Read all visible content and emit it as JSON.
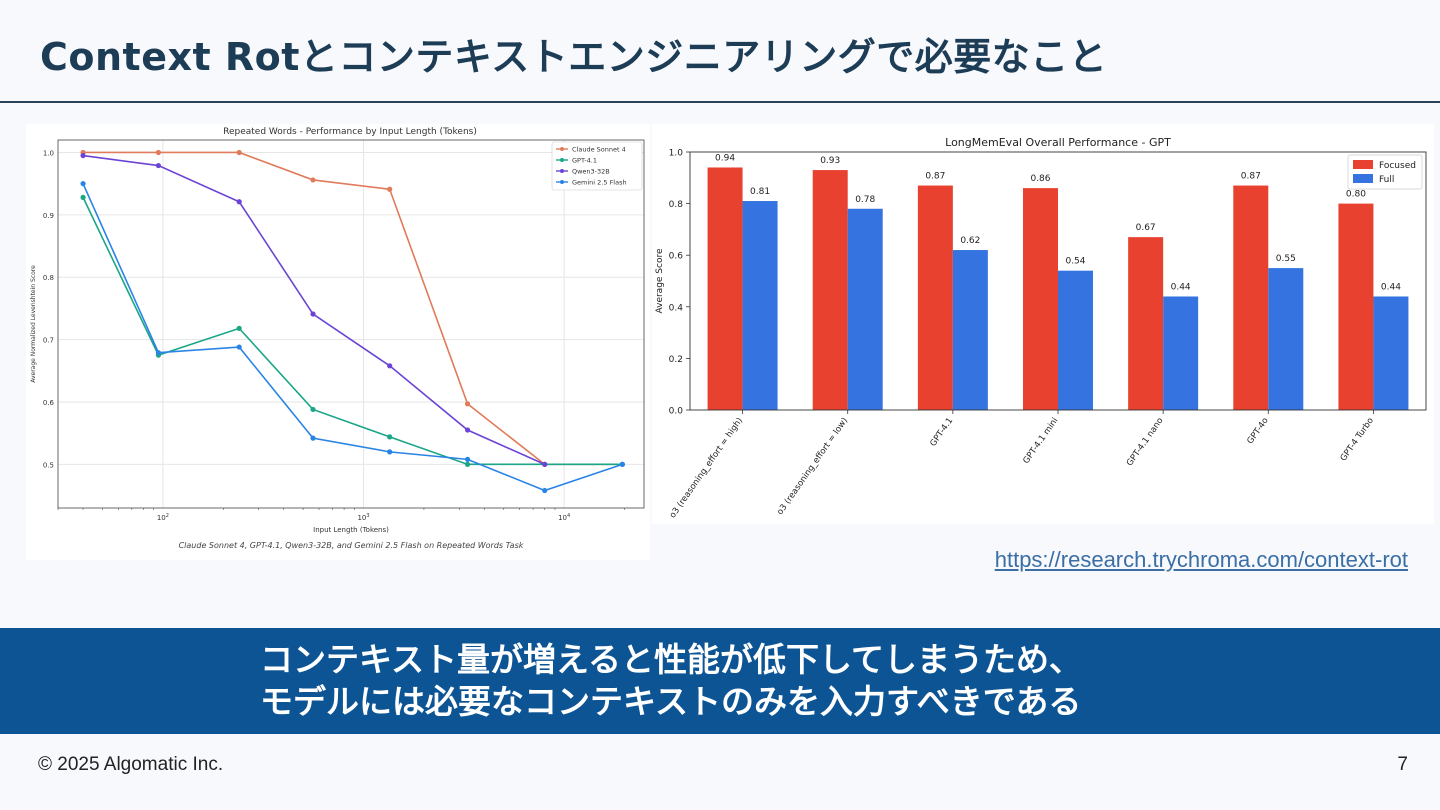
{
  "slide": {
    "title": "Context Rotとコンテキストエンジニアリングで必要なこと",
    "source_url": "https://research.trychroma.com/context-rot",
    "banner_line1": "コンテキスト量が増えると性能が低下してしまうため、",
    "banner_line2": "モデルには必要なコンテキストのみを入力すべきである",
    "copyright": "© 2025 Algomatic Inc.",
    "page_number": "7",
    "banner_color": "#0d5495"
  },
  "chart_data": [
    {
      "type": "line",
      "title": "Repeated Words - Performance by Input Length (Tokens)",
      "xlabel": "Input Length (Tokens)",
      "ylabel": "Average Normalized Levenshtein Score",
      "caption": "Claude Sonnet 4, GPT-4.1, Qwen3-32B, and Gemini 2.5 Flash on Repeated Words Task",
      "x_scale": "log",
      "xlim": [
        30,
        25000
      ],
      "ylim": [
        0.43,
        1.02
      ],
      "x_ticks": [
        {
          "value": 100,
          "base": "10",
          "exp": "2"
        },
        {
          "value": 1000,
          "base": "10",
          "exp": "3"
        },
        {
          "value": 10000,
          "base": "10",
          "exp": "4"
        }
      ],
      "y_ticks": [
        "0.5",
        "0.6",
        "0.7",
        "0.8",
        "0.9",
        "1.0"
      ],
      "grid": true,
      "legend_position": "top-right",
      "series": [
        {
          "name": "Claude Sonnet 4",
          "color": "#e07b5b",
          "x": [
            40,
            95,
            240,
            560,
            1350,
            3300,
            8000,
            19500
          ],
          "y": [
            1.0,
            1.0,
            1.0,
            0.956,
            0.941,
            0.597,
            0.5,
            0.5
          ]
        },
        {
          "name": "GPT-4.1",
          "color": "#1aa687",
          "x": [
            40,
            95,
            240,
            560,
            1350,
            3300,
            8000,
            19500
          ],
          "y": [
            0.928,
            0.675,
            0.718,
            0.588,
            0.544,
            0.5,
            0.5,
            0.5
          ]
        },
        {
          "name": "Qwen3-32B",
          "color": "#6b44d6",
          "x": [
            40,
            95,
            240,
            560,
            1350,
            3300,
            8000
          ],
          "y": [
            0.995,
            0.979,
            0.921,
            0.741,
            0.658,
            0.555,
            0.5
          ]
        },
        {
          "name": "Gemini 2.5 Flash",
          "color": "#2a84e5",
          "x": [
            40,
            95,
            240,
            560,
            1350,
            3300,
            8000,
            19500
          ],
          "y": [
            0.95,
            0.679,
            0.688,
            0.542,
            0.52,
            0.508,
            0.458,
            0.5
          ]
        }
      ]
    },
    {
      "type": "bar",
      "title": "LongMemEval Overall Performance - GPT",
      "ylabel": "Average Score",
      "ylim": [
        0,
        1.0
      ],
      "y_ticks": [
        "0.0",
        "0.2",
        "0.4",
        "0.6",
        "0.8",
        "1.0"
      ],
      "legend_position": "top-right",
      "categories": [
        "o3 (reasoning_effort = high)",
        "o3 (reasoning_effort = low)",
        "GPT-4.1",
        "GPT-4.1 mini",
        "GPT-4.1 nano",
        "GPT-4o",
        "GPT-4 Turbo"
      ],
      "series": [
        {
          "name": "Focused",
          "color": "#e8412f",
          "values": [
            0.94,
            0.93,
            0.87,
            0.86,
            0.67,
            0.87,
            0.8
          ],
          "labels": [
            "0.94",
            "0.93",
            "0.87",
            "0.86",
            "0.67",
            "0.87",
            "0.80"
          ]
        },
        {
          "name": "Full",
          "color": "#3574e0",
          "values": [
            0.81,
            0.78,
            0.62,
            0.54,
            0.44,
            0.55,
            0.44
          ],
          "labels": [
            "0.81",
            "0.78",
            "0.62",
            "0.54",
            "0.44",
            "0.55",
            "0.44"
          ]
        }
      ]
    }
  ]
}
